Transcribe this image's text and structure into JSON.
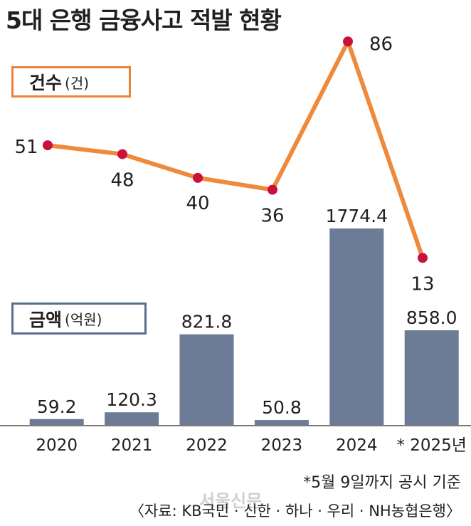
{
  "title": "5대 은행 금융사고 적발 현황",
  "chart_data": [
    {
      "type": "line",
      "name": "count",
      "legend": "건수",
      "unit": "(건)",
      "categories": [
        "2020",
        "2021",
        "2022",
        "2023",
        "2024",
        "* 2025년"
      ],
      "values": [
        51,
        48,
        40,
        36,
        86,
        13
      ],
      "value_labels": [
        "51",
        "48",
        "40",
        "36",
        "86",
        "13"
      ],
      "line_color": "#ef8a3c",
      "marker_color": "#c8123a"
    },
    {
      "type": "bar",
      "name": "amount",
      "legend": "금액",
      "unit": "(억원)",
      "categories": [
        "2020",
        "2021",
        "2022",
        "2023",
        "2024",
        "* 2025년"
      ],
      "values": [
        59.2,
        120.3,
        821.8,
        50.8,
        1774.4,
        858.0
      ],
      "value_labels": [
        "59.2",
        "120.3",
        "821.8",
        "50.8",
        "1774.4",
        "858.0"
      ],
      "bar_color": "#6c7b96"
    }
  ],
  "notes": {
    "basis": "*5월 9일까지 공시 기준",
    "source": "〈자료: KB국민 · 신한 · 하나 · 우리 · NH농협은행〉"
  },
  "watermark": "서울신문"
}
